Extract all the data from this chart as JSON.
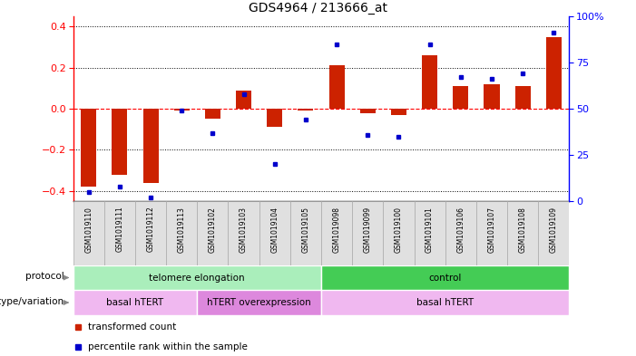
{
  "title": "GDS4964 / 213666_at",
  "samples": [
    "GSM1019110",
    "GSM1019111",
    "GSM1019112",
    "GSM1019113",
    "GSM1019102",
    "GSM1019103",
    "GSM1019104",
    "GSM1019105",
    "GSM1019098",
    "GSM1019099",
    "GSM1019100",
    "GSM1019101",
    "GSM1019106",
    "GSM1019107",
    "GSM1019108",
    "GSM1019109"
  ],
  "red_values": [
    -0.38,
    -0.32,
    -0.36,
    -0.01,
    -0.05,
    0.09,
    -0.09,
    -0.01,
    0.21,
    -0.02,
    -0.03,
    0.26,
    0.11,
    0.12,
    0.11,
    0.35
  ],
  "blue_values": [
    5,
    8,
    2,
    49,
    37,
    58,
    20,
    44,
    85,
    36,
    35,
    85,
    67,
    66,
    69,
    91
  ],
  "protocol_groups": [
    {
      "label": "telomere elongation",
      "start": 0,
      "end": 8,
      "color": "#aaeebb"
    },
    {
      "label": "control",
      "start": 8,
      "end": 16,
      "color": "#44cc55"
    }
  ],
  "genotype_groups": [
    {
      "label": "basal hTERT",
      "start": 0,
      "end": 4,
      "color": "#f0b8f0"
    },
    {
      "label": "hTERT overexpression",
      "start": 4,
      "end": 8,
      "color": "#dd88dd"
    },
    {
      "label": "basal hTERT",
      "start": 8,
      "end": 16,
      "color": "#f0b8f0"
    }
  ],
  "ylim_left": [
    -0.45,
    0.45
  ],
  "ylim_right": [
    0,
    100
  ],
  "yticks_left": [
    -0.4,
    -0.2,
    0.0,
    0.2,
    0.4
  ],
  "yticks_right": [
    0,
    25,
    50,
    75,
    100
  ],
  "red_color": "#CC2200",
  "blue_color": "#0000CC",
  "bar_width": 0.5,
  "tick_bg_color": "#cccccc",
  "tick_cell_color": "#dddddd",
  "fig_width": 7.01,
  "fig_height": 3.93,
  "dpi": 100
}
